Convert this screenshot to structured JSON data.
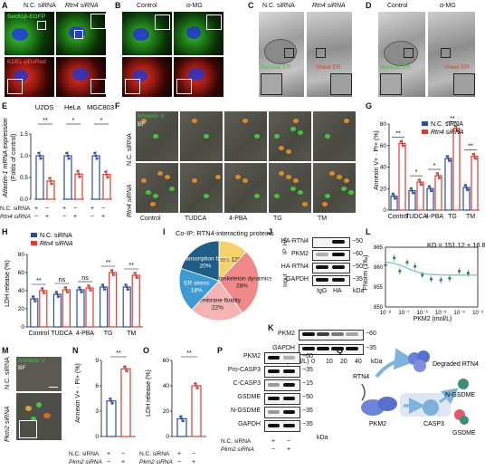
{
  "panels": {
    "A": {
      "letter": "A",
      "col_nc": "N.C. siRNA",
      "col_rtn4": "Rtn4 siRNA",
      "stain_top": "Sec61β-EGFP",
      "stain_bot": "KDEL-pDsRed"
    },
    "B": {
      "letter": "B",
      "col_ctrl": "Control",
      "col_amg": "α-MG"
    },
    "C": {
      "letter": "C",
      "col_nc": "N.C. siRNA",
      "col_rtn4": "Rtn4 siRNA",
      "lbl_nc": "Nuclear ER",
      "lbl_rtn4": "Sheet ER"
    },
    "D": {
      "letter": "D",
      "col_ctrl": "Control",
      "col_amg": "α-MG",
      "lbl_ctrl": "Nuclear ER",
      "lbl_amg": "Sheet ER"
    },
    "E": {
      "letter": "E",
      "ylabel_a": "Atlastin-1 mRNA expression",
      "ylabel_b": "(Folds of control)",
      "groups": [
        "U2OS",
        "HeLa",
        "MGC803"
      ],
      "yticks": [
        "0.0",
        "0.5",
        "1.0",
        "1.5"
      ],
      "sig": [
        "**",
        "*",
        "*"
      ],
      "row1": "N.C. siRNA",
      "row2": "Rtn4 siRNA",
      "plus": "+",
      "minus": "−"
    },
    "F": {
      "letter": "F",
      "stain1": "Annexin V",
      "stain2": "BF",
      "row_nc": "N.C. siRNA",
      "row_rtn4": "Rtn4 siRNA",
      "cols": [
        "Control",
        "TUDCA",
        "4-PBA",
        "TG",
        "TM"
      ]
    },
    "G": {
      "letter": "G",
      "ylabel": "Annexin V+ · PI+ (%)",
      "leg_nc": "N.C. siRNA",
      "leg_rtn4": "Rtn4 siRNA",
      "yticks": [
        "0",
        "20",
        "40",
        "60",
        "80"
      ],
      "sig": [
        "**",
        "*",
        "*",
        "**",
        "**"
      ]
    },
    "H": {
      "letter": "H",
      "ylabel": "LDH release (%)",
      "leg_nc": "N.C. siRNA",
      "leg_rtn4": "Rtn4 siRNA",
      "yticks": [
        "0",
        "20",
        "40",
        "60",
        "80"
      ],
      "sig": [
        "**",
        "ns",
        "ns",
        "**",
        "**"
      ]
    },
    "I": {
      "letter": "I",
      "title": "Co-IP: RTN4-interacting proteins"
    },
    "J": {
      "letter": "J",
      "rows": [
        "HA-RTN4",
        "PKM2",
        "HA-RTN4",
        "GAPDH"
      ],
      "side_ip": "IP: HA",
      "side_input": "Input",
      "lanes": [
        "IgG",
        "HA"
      ],
      "mw": [
        "50",
        "60",
        "50",
        "35"
      ],
      "kda": "kDa"
    },
    "K": {
      "letter": "K",
      "rows": [
        "PKM2",
        "GAPDH"
      ],
      "mw": [
        "60",
        "35"
      ],
      "conc_label": "α-MG (μmol/L)",
      "concs": [
        "0",
        "10",
        "20",
        "40"
      ],
      "kda": "kDa"
    },
    "L": {
      "letter": "L",
      "kd": "KD = 151.12 ± 16.84 nmol/L",
      "ylabel": "FNorm (1‰)",
      "xlabel": "PKM2 (mol/L)",
      "yticks": [
        "850",
        "855",
        "860",
        "865"
      ],
      "xticks": [
        "10⁻⁸",
        "10⁻⁷",
        "10⁻⁶",
        "10⁻⁵",
        "10⁻⁴",
        "10⁻³"
      ]
    },
    "M": {
      "letter": "M",
      "stain1": "Annexin V",
      "stain2": "BF",
      "row_nc": "N.C. siRNA",
      "row_pkm2": "Pkm2 siRNA"
    },
    "N": {
      "letter": "N",
      "ylabel": "Annexin V+ · PI+ (%)",
      "yticks": [
        "0",
        "3",
        "6",
        "9"
      ],
      "sig": "**",
      "row1": "N.C. siRNA",
      "row2": "Pkm2 siRNA",
      "plus": "+",
      "minus": "−"
    },
    "O": {
      "letter": "O",
      "ylabel": "LDH release (%)",
      "yticks": [
        "0",
        "20",
        "40",
        "60"
      ],
      "sig": "**",
      "row1": "N.C. siRNA",
      "row2": "Pkm2 siRNA",
      "plus": "+",
      "minus": "−"
    },
    "P": {
      "letter": "P",
      "rows": [
        "PKM2",
        "Pro-CASP3",
        "C-CASP3",
        "GSDME",
        "N-GSDME",
        "GAPDH"
      ],
      "mw": [
        "60",
        "35",
        "15",
        "50",
        "35",
        "35"
      ],
      "kda": "kDa",
      "row1": "N.C. siRNA",
      "row2": "Pkm2 siRNA",
      "plus": "+",
      "minus": "−"
    },
    "Q": {
      "letter": "Q",
      "rtn4": "RTN4",
      "degraded": "Degraded RTN4",
      "pkm2": "PKM2",
      "casp3": "CASP3",
      "ngsdme": "N-GSDME",
      "gsdme": "GSDME"
    }
  },
  "chart_data": [
    {
      "type": "bar",
      "panel": "E",
      "categories": [
        "U2OS",
        "HeLa",
        "MGC803"
      ],
      "series": [
        {
          "name": "N.C. siRNA",
          "values": [
            1.0,
            1.0,
            1.0
          ]
        },
        {
          "name": "Rtn4 siRNA",
          "values": [
            0.42,
            0.58,
            0.57
          ]
        }
      ],
      "ylim": [
        0,
        1.5
      ]
    },
    {
      "type": "bar",
      "panel": "G",
      "categories": [
        "Control",
        "TUDCA",
        "4-PBA",
        "TG",
        "TM"
      ],
      "series": [
        {
          "name": "N.C. siRNA",
          "values": [
            13,
            18,
            20,
            48,
            21
          ]
        },
        {
          "name": "Rtn4 siRNA",
          "values": [
            62,
            26,
            32,
            76,
            50
          ]
        }
      ],
      "ylim": [
        0,
        80
      ]
    },
    {
      "type": "bar",
      "panel": "H",
      "categories": [
        "Control",
        "TUDCA",
        "4-PBA",
        "TG",
        "TM"
      ],
      "series": [
        {
          "name": "N.C. siRNA",
          "values": [
            31,
            36,
            41,
            44,
            44
          ]
        },
        {
          "name": "Rtn4 siRNA",
          "values": [
            40,
            41,
            43,
            60,
            57
          ]
        }
      ],
      "ylim": [
        0,
        80
      ]
    },
    {
      "type": "pie",
      "panel": "I",
      "labels": [
        "Others 12%",
        "Cytoskeleton dynamics 28%",
        "Membrane fluidity 22%",
        "ER stress 18%",
        "Transcription factor 20%"
      ],
      "values": [
        12,
        28,
        22,
        18,
        20
      ],
      "colors": [
        "#f5d16a",
        "#f08a8a",
        "#f4b4b4",
        "#3f9ad3",
        "#1f5d86"
      ]
    },
    {
      "type": "scatter",
      "panel": "L",
      "x": [
        1e-08,
        3e-08,
        6e-08,
        1.5e-07,
        4e-07,
        1e-06,
        3e-06,
        1e-05,
        3e-05,
        0.0001,
        0.0003
      ],
      "y": [
        860.5,
        862.3,
        859.0,
        861.2,
        860.2,
        858.0,
        857.0,
        856.8,
        857.2,
        859.0,
        858.5
      ],
      "ylim": [
        850,
        865
      ]
    },
    {
      "type": "bar",
      "panel": "N",
      "categories": [
        "N.C. siRNA",
        "Pkm2 siRNA"
      ],
      "values": [
        4.2,
        8.0
      ],
      "ylim": [
        0,
        9
      ]
    },
    {
      "type": "bar",
      "panel": "O",
      "categories": [
        "N.C. siRNA",
        "Pkm2 siRNA"
      ],
      "values": [
        14,
        40
      ],
      "ylim": [
        0,
        60
      ]
    }
  ],
  "colors": {
    "nc": "#2b4e9c",
    "rtn4": "#e03b2c",
    "green": "#39c83b",
    "red": "#c8241b",
    "blue": "#2a3bd6",
    "pie1": "#f5d16a",
    "pie2": "#f08a8a",
    "pie3": "#f4b4b4",
    "pie4": "#3f9ad3",
    "pie5": "#1f5d86"
  }
}
